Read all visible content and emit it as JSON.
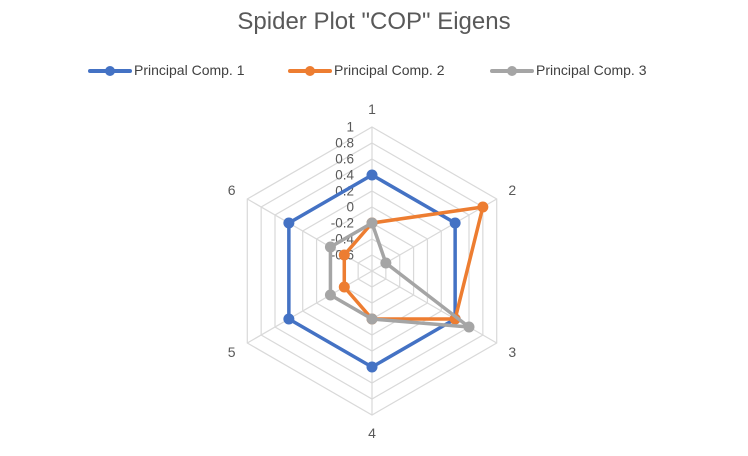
{
  "chart_data": {
    "type": "radar",
    "title": "Spider Plot \"COP\" Eigens",
    "categories": [
      "1",
      "2",
      "3",
      "4",
      "5",
      "6"
    ],
    "radial_ticks": [
      "-0.6",
      "-0.4",
      "-0.2",
      "0",
      "0.2",
      "0.4",
      "0.6",
      "0.8",
      "1"
    ],
    "rlim": [
      -0.8,
      1
    ],
    "grid": true,
    "legend_position": "top",
    "series": [
      {
        "name": "Principal Comp. 1",
        "color": "#4472C4",
        "values": [
          0.4,
          0.4,
          0.4,
          0.4,
          0.4,
          0.4
        ]
      },
      {
        "name": "Principal Comp. 2",
        "color": "#ED7D31",
        "values": [
          -0.2,
          0.8,
          0.4,
          -0.2,
          -0.4,
          -0.4
        ]
      },
      {
        "name": "Principal Comp. 3",
        "color": "#A5A5A5",
        "values": [
          -0.2,
          -0.6,
          0.6,
          -0.2,
          -0.2,
          -0.2
        ]
      }
    ]
  }
}
